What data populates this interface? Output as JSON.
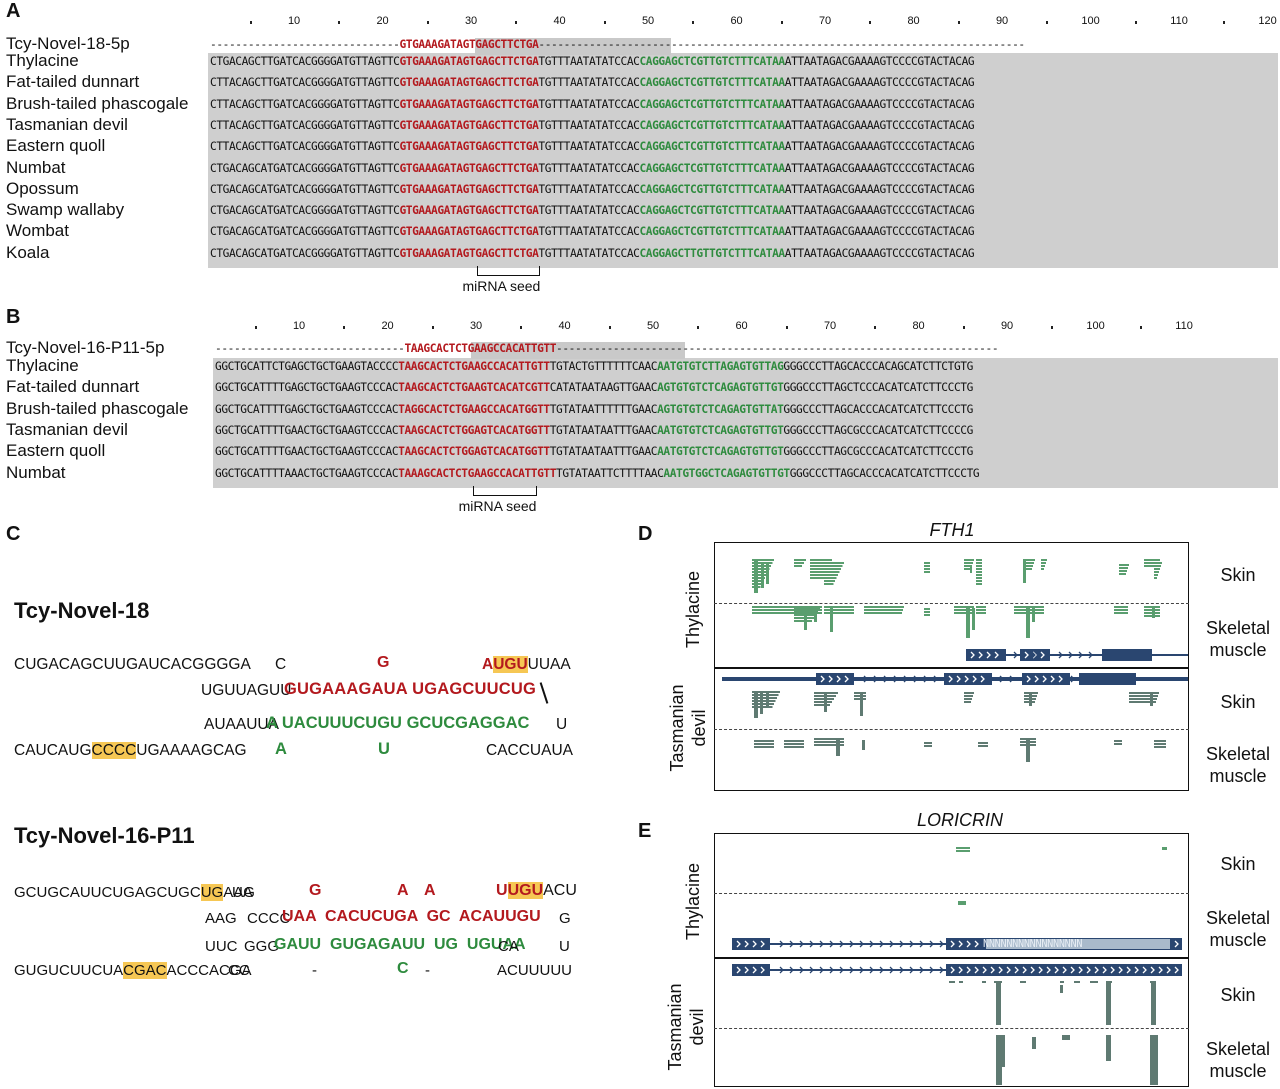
{
  "panels": {
    "A": "A",
    "B": "B",
    "C": "C",
    "D": "D",
    "E": "E"
  },
  "panelA": {
    "ticks": [
      "10",
      "20",
      "30",
      "40",
      "50",
      "60",
      "70",
      "80",
      "90",
      "100",
      "110",
      "120"
    ],
    "mirna_label": "Tcy-Novel-18-5p",
    "mirna_seq": "GTGAAAGATAGTGAGCTTCTGA",
    "mirna_prefix": "------------------------------",
    "mirna_suffix": "-----------------------------------------------------------------------------",
    "seed_label": "miRNA seed",
    "rows": [
      {
        "species": "Thylacine",
        "pre": "CTGACAGCTTGATCACGGGGATGTTAGTTC",
        "red": "GTGAAAGATAGTGAGCTTCTGA",
        "mid": "TGTTTAATATATCCAC",
        "green": "CAGGAGCTCGTTGTCTTTCATAA",
        "post": "ATTAATAGACGAAAAGTCCCCGTACTACAG"
      },
      {
        "species": "Fat-tailed dunnart",
        "pre": "CTTACAGCTTGATCACGGGGATGTTAGTTC",
        "red": "GTGAAAGATAGTGAGCTTCTGA",
        "mid": "TGTTTAATATATCCAC",
        "green": "CAGGAGCTCGTTGTCTTTCATAA",
        "post": "ATTAATAGACGAAAAGTCCCCGTACTACAG"
      },
      {
        "species": "Brush-tailed phascogale",
        "pre": "CTTACAGCTTGATCACGGGGATGTTAGTTC",
        "red": "GTGAAAGATAGTGAGCTTCTGA",
        "mid": "TGTTTAATATATCCAC",
        "green": "CAGGAGCTCGTTGTCTTTCATAA",
        "post": "ATTAATAGACGAAAAGTCCCCGTACTACAG"
      },
      {
        "species": "Tasmanian devil",
        "pre": "CTTACAGCTTGATCACGGGGATGTTAGTTC",
        "red": "GTGAAAGATAGTGAGCTTCTGA",
        "mid": "TGTTTAATATATCCAC",
        "green": "CAGGAGCTCGTTGTCTTTCATAA",
        "post": "ATTAATAGACGAAAAGTCCCCGTACTACAG"
      },
      {
        "species": "Eastern quoll",
        "pre": "CTTACAGCTTGATCACGGGGATGTTAGTTC",
        "red": "GTGAAAGATAGTGAGCTTCTGA",
        "mid": "TGTTTAATATATCCAC",
        "green": "CAGGAGCTCGTTGTCTTTCATAA",
        "post": "ATTAATAGACGAAAAGTCCCCGTACTACAG"
      },
      {
        "species": "Numbat",
        "pre": "CTGACAGCATGATCACGGGGATGTTAGTTC",
        "red": "GTGAAAGATAGTGAGCTTCTGA",
        "mid": "TGTTTAATATATCCAC",
        "green": "CAGGAGCTCGTTGTCTTTCATAA",
        "post": "ATTAATAGACGAAAAGTCCCCGTACTACAG"
      },
      {
        "species": "Opossum",
        "pre": "CTGACAGCATGATCACGGGGATGTTAGTTC",
        "red": "GTGAAAGATAGTGAGCTTCTGA",
        "mid": "TGTTTAATATATCCAC",
        "green": "CAGGAGCTCGTTGTCTTTCATAA",
        "post": "ATTAATAGACGAAAAGTCCCCGTACTACAG"
      },
      {
        "species": "Swamp wallaby",
        "pre": "CTGACAGCATGATCACGGGGATGTTAGTTC",
        "red": "GTGAAAGATAGTGAGCTTCTGA",
        "mid": "TGTTTAATATATCCAC",
        "green": "CAGGAGCTCGTTGTCTTTCATAA",
        "post": "ATTAATAGACGAAAAGTCCCCGTACTACAG"
      },
      {
        "species": "Wombat",
        "pre": "CTGACAGCATGATCACGGGGATGTTAGTTC",
        "red": "GTGAAAGATAGTGAGCTTCTGA",
        "mid": "TGTTTAATATATCCAC",
        "green": "CAGGAGCTCGTTGTCTTTCATAA",
        "post": "ATTAATAGACGAAAAGTCCCCGTACTACAG"
      },
      {
        "species": "Koala",
        "pre": "CTGACAGCATGATCACGGGGATGTTAGTTC",
        "red": "GTGAAAGATAGTGAGCTTCTGA",
        "mid": "TGTTTAATATATCCAC",
        "green": "CAGGAGCTTGTTGTCTTTCATAA",
        "post": "ATTAATAGACGAAAAGTCCCCGTACTACAG"
      }
    ]
  },
  "panelB": {
    "ticks": [
      "10",
      "20",
      "30",
      "40",
      "50",
      "60",
      "70",
      "80",
      "90",
      "100",
      "110"
    ],
    "mirna_label": "Tcy-Novel-16-P11-5p",
    "mirna_seq": "TAAGCACTCTGAAGCCACATTGTT",
    "mirna_prefix": "------------------------------",
    "mirna_suffix": "----------------------------------------------------------------------",
    "seed_label": "miRNA seed",
    "rows": [
      {
        "species": "Thylacine",
        "pre": "GGCTGCATTCTGAGCTGCTGAAGTACCCC",
        "red": "TAAGCACTCTGAAGCCACATTGTT",
        "mid": "TGTACTGTTTTTTCAAC",
        "green": "AATGTGTCTTAGAGTGTTAG",
        "post": "GGGCCCTTAGCACCCACAGCATCTTCTGTG"
      },
      {
        "species": "Fat-tailed dunnart",
        "pre": "GGCTGCATTTTGAGCTGCTGAAGTCCCAC",
        "red": "TAAGCACTCTGAAGTCACATCGTT",
        "mid": "CATATAATAAGTTGAAC",
        "green": "AGTGTGTCTCAGAGTGTTGT",
        "post": "GGGCCCTTAGCTCCCACATCATCTTCCCTG"
      },
      {
        "species": "Brush-tailed phascogale",
        "pre": "GGCTGCATTTTGAGCTGCTGAAGTCCCAC",
        "red": "TAGGCACTCTGAAGCCACATGGTT",
        "mid": "TGTATAATTTTTTGAAC",
        "green": "AGTGTGTCTCAGAGTGTTAT",
        "post": "GGGCCCTTAGCACCCACATCATCTTCCCTG"
      },
      {
        "species": "Tasmanian devil",
        "pre": "GGCTGCATTTTGAACTGCTGAAGTCCCAC",
        "red": "TAAGCACTCTGGAGTCACATGGTT",
        "mid": "TGTATAATAATTTGAAC",
        "green": "AATGTGTCTCAGAGTGTTGT",
        "post": "GGGCCCTTAGCGCCCACATCATCTTCCCCG"
      },
      {
        "species": "Eastern quoll",
        "pre": "GGCTGCATTTTGAACTGCTGAAGTCCCAC",
        "red": "TAAGCACTCTGGAGTCACATGGTT",
        "mid": "TGTATAATAATTTGAAC",
        "green": "AATGTGTCTCAGAGTGTTGT",
        "post": "GGGCCCTTAGCGCCCACATCATCTTCCCTG"
      },
      {
        "species": "Numbat",
        "pre": "GGCTGCATTTTAAACTGCTGAAGTCCCAC",
        "red": "TAAAGCACTCTGAAGCCACATTGTT",
        "mid": "TGTATAATTCTTTTAAC",
        "green": "AATGTGGCTCAGAGTGTTGT",
        "post": "GGGCCCTTAGCACCCACATCATCTTCCCTG"
      }
    ]
  },
  "panelC": {
    "h1": {
      "title": "Tcy-Novel-18",
      "l1a": "CUGACAGCUUGAUCACGGGGA",
      "l1b": "C",
      "l1c": "G",
      "l1d": "A",
      "l1e": "UGU",
      "l1f": "UUAA",
      "l2a": "UGUUAGUU ",
      "l2r1": "GUGAAAGAUA",
      "l2r2": "UGAGCUUCUG",
      "l3a": "AUAAUUA",
      "l3g1": "A UACUUUCUGU",
      "l3g2": "GCUCGAGGAC",
      "l3u": "U",
      "l4a": "CAUCAUG",
      "l4y": "CCCC",
      "l4b": "UGAAAAGCAG",
      "l4c": "CACCUAUA",
      "l4g1": "A",
      "l4g2": "U"
    },
    "h2": {
      "title": "Tcy-Novel-16-P11",
      "l1a": "GCUGCAUUCUGAGCUGC",
      "l1y": "UG",
      "l1b": "AAG",
      "l1c": "UA",
      "r1": "G",
      "r2": "A",
      "r3": "A",
      "l1d": "U",
      "l1y2": "UGU",
      "l1e": "ACU",
      "l2a": "AAG",
      "l2b": "CCCC",
      "l2r": "UAA  CACUCUGA  GC  ACAUUGU",
      "l2g": "G",
      "l3a": "UUC",
      "l3b": "GGG",
      "l3g": "GAUU  GUGAGAUU  UG  UGUAA",
      "l3c": "CA",
      "l3u": "U",
      "l4a": "GUGUCUUCUA",
      "l4y": "CGAC",
      "l4b": "ACCCACGA",
      "l4c": "CC",
      "l4d": "-",
      "l4e": "C",
      "l4f": "-",
      "l4g": "ACUUUUU"
    }
  },
  "panelD": {
    "gene": "FTH1",
    "species_top": "Thylacine",
    "species_bottom_1": "Tasmanian",
    "species_bottom_2": "devil",
    "tissues": [
      "Skin",
      "Skeletal",
      "muscle",
      "Skin",
      "Skeletal",
      "muscle"
    ],
    "colors": {
      "thylacine": "#5a9e6f",
      "devil": "#5f7a72",
      "gene": "#2a4670"
    }
  },
  "panelE": {
    "gene": "LORICRIN",
    "species_top": "Thylacine",
    "species_bottom_1": "Tasmanian",
    "species_bottom_2": "devil",
    "tissues": [
      "Skin",
      "Skeletal",
      "muscle",
      "Skin",
      "Skeletal",
      "muscle"
    ],
    "nstring": "NNNNNNNNNNNNNNNNN"
  }
}
